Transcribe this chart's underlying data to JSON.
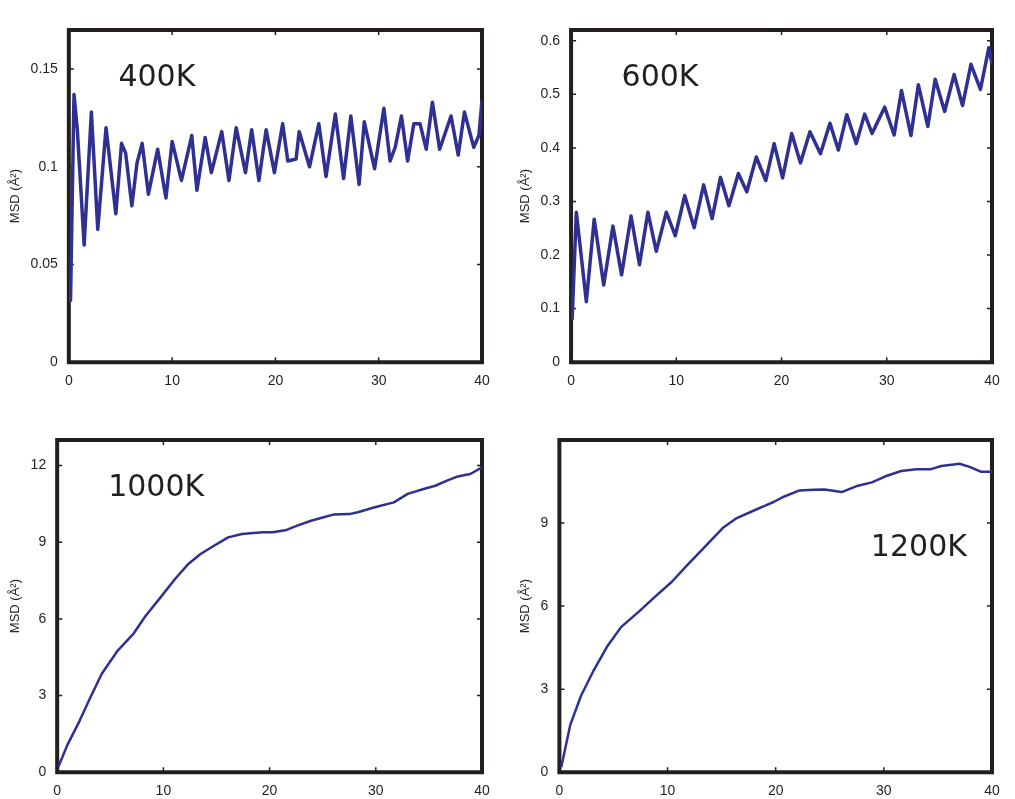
{
  "chart_data": [
    {
      "type": "line",
      "ylabel": "MSD (Å²)",
      "annotations": [
        "400K"
      ],
      "xlim": [
        0,
        40
      ],
      "xticks": [
        0,
        10,
        20,
        30,
        40
      ],
      "ylim": [
        0,
        0.17
      ],
      "yticks": [
        0,
        0.05,
        {
          "value": 0.1,
          "label": "0.1"
        },
        0.15
      ],
      "color": "#2e3192",
      "x": [
        0.16,
        0.5,
        0.82,
        1.48,
        2.18,
        2.8,
        3.6,
        4.55,
        5.1,
        5.5,
        6.1,
        6.6,
        7.1,
        7.7,
        8.6,
        9.4,
        10.0,
        10.9,
        11.9,
        12.4,
        13.2,
        13.8,
        14.8,
        15.5,
        16.2,
        17.1,
        17.7,
        18.4,
        19.1,
        19.9,
        20.7,
        21.2,
        22.0,
        22.3,
        23.3,
        24.2,
        24.9,
        25.8,
        26.6,
        27.3,
        28.1,
        28.6,
        29.6,
        30.5,
        31.1,
        31.6,
        32.2,
        32.8,
        33.4,
        34.0,
        34.6,
        35.2,
        35.9,
        37.0,
        37.7,
        38.3,
        39.2,
        39.7,
        40
      ],
      "values": [
        0.031,
        0.137,
        0.119,
        0.06,
        0.128,
        0.068,
        0.12,
        0.076,
        0.112,
        0.107,
        0.08,
        0.102,
        0.112,
        0.086,
        0.109,
        0.084,
        0.113,
        0.093,
        0.116,
        0.088,
        0.115,
        0.097,
        0.118,
        0.093,
        0.12,
        0.097,
        0.119,
        0.093,
        0.119,
        0.097,
        0.122,
        0.103,
        0.104,
        0.118,
        0.1,
        0.122,
        0.095,
        0.127,
        0.094,
        0.126,
        0.091,
        0.123,
        0.099,
        0.13,
        0.103,
        0.11,
        0.126,
        0.103,
        0.122,
        0.122,
        0.109,
        0.133,
        0.109,
        0.126,
        0.106,
        0.128,
        0.11,
        0.116,
        0.134
      ]
    },
    {
      "type": "line",
      "ylabel": "MSD (Å²)",
      "annotations": [
        "600K"
      ],
      "xlim": [
        0,
        40
      ],
      "xticks": [
        0,
        10,
        20,
        30,
        40
      ],
      "ylim": [
        0,
        0.62
      ],
      "yticks": [
        0,
        0.1,
        0.2,
        0.3,
        0.4,
        0.5,
        0.6
      ],
      "color": "#2e3192",
      "x": [
        0.1,
        0.5,
        1.45,
        2.2,
        3.1,
        3.98,
        4.8,
        5.7,
        6.5,
        7.3,
        8.1,
        9.05,
        9.9,
        10.8,
        11.7,
        12.6,
        13.4,
        14.2,
        15.0,
        15.9,
        16.7,
        17.6,
        18.5,
        19.3,
        20.1,
        20.97,
        21.8,
        22.7,
        23.7,
        24.6,
        25.4,
        26.2,
        27.1,
        27.9,
        28.6,
        29.8,
        30.7,
        31.4,
        32.3,
        33.0,
        33.9,
        34.6,
        35.5,
        36.4,
        37.2,
        38.0,
        38.9,
        39.7,
        40
      ],
      "values": [
        0.079,
        0.28,
        0.113,
        0.267,
        0.144,
        0.254,
        0.163,
        0.273,
        0.182,
        0.28,
        0.207,
        0.28,
        0.236,
        0.311,
        0.251,
        0.331,
        0.268,
        0.345,
        0.292,
        0.352,
        0.318,
        0.383,
        0.339,
        0.408,
        0.344,
        0.427,
        0.372,
        0.43,
        0.389,
        0.446,
        0.396,
        0.462,
        0.408,
        0.463,
        0.427,
        0.476,
        0.424,
        0.507,
        0.423,
        0.518,
        0.44,
        0.528,
        0.468,
        0.537,
        0.479,
        0.556,
        0.509,
        0.587,
        0.556
      ]
    },
    {
      "type": "line",
      "ylabel": "MSD (Å²)",
      "annotations": [
        "1000K"
      ],
      "xlim": [
        0,
        40
      ],
      "xticks": [
        0,
        10,
        20,
        30,
        40
      ],
      "ylim": [
        0,
        13
      ],
      "yticks": [
        0,
        3,
        6,
        9,
        12
      ],
      "color": "#2e3192",
      "x": [
        0.1,
        1,
        2.1,
        3.1,
        4.2,
        5.7,
        7.15,
        8.3,
        9.75,
        11.1,
        12.35,
        13.5,
        14.8,
        16.1,
        17.4,
        19.35,
        20.3,
        21.6,
        22.6,
        23.9,
        25.0,
        26.0,
        27.5,
        28.3,
        29.9,
        31.7,
        33.0,
        34.5,
        35.6,
        36.7,
        37.6,
        38.9,
        40
      ],
      "values": [
        0.2,
        1.1,
        2.0,
        2.9,
        3.85,
        4.76,
        5.4,
        6.1,
        6.85,
        7.56,
        8.15,
        8.54,
        8.87,
        9.19,
        9.32,
        9.39,
        9.39,
        9.48,
        9.65,
        9.84,
        9.97,
        10.08,
        10.1,
        10.17,
        10.37,
        10.56,
        10.89,
        11.08,
        11.21,
        11.41,
        11.56,
        11.67,
        11.93
      ]
    },
    {
      "type": "line",
      "ylabel": "MSD (Å²)",
      "annotations": [
        "1200K"
      ],
      "xlim": [
        0,
        40
      ],
      "xticks": [
        0,
        10,
        20,
        30,
        40
      ],
      "ylim": [
        0,
        12
      ],
      "yticks": [
        0,
        3,
        6,
        9
      ],
      "color": "#2e3192",
      "x": [
        0.17,
        1.0,
        2.0,
        3.2,
        4.4,
        5.7,
        7.4,
        8.7,
        10.4,
        11.8,
        13.4,
        15.1,
        16.4,
        18.2,
        19.8,
        20.8,
        22.2,
        23.5,
        24.5,
        26.1,
        27.6,
        28.9,
        30.3,
        31.6,
        33.0,
        34.3,
        35.3,
        37.0,
        38.0,
        39.0,
        40
      ],
      "values": [
        0.18,
        1.7,
        2.76,
        3.7,
        4.53,
        5.24,
        5.82,
        6.29,
        6.88,
        7.47,
        8.12,
        8.82,
        9.18,
        9.49,
        9.76,
        9.96,
        10.18,
        10.2,
        10.21,
        10.12,
        10.35,
        10.47,
        10.71,
        10.88,
        10.94,
        10.94,
        11.06,
        11.14,
        11.02,
        10.85,
        10.85
      ]
    }
  ]
}
